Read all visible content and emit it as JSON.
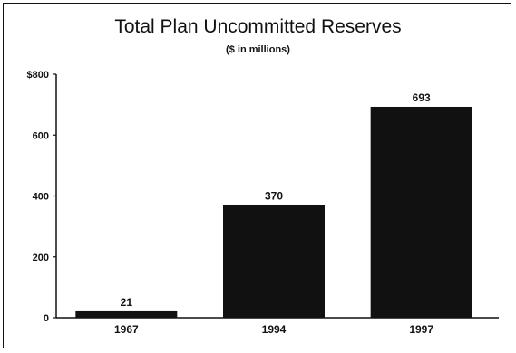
{
  "chart_data": {
    "type": "bar",
    "title": "Total Plan Uncommitted Reserves",
    "subtitle": "($ in millions)",
    "categories": [
      "1967",
      "1994",
      "1997"
    ],
    "values": [
      21,
      370,
      693
    ],
    "data_labels": [
      "21",
      "370",
      "693"
    ],
    "ylim": [
      0,
      800
    ],
    "yticks": [
      0,
      200,
      400,
      600,
      800
    ],
    "ytick_labels": [
      "0",
      "200",
      "400",
      "600",
      "$800"
    ],
    "xlabel": "",
    "ylabel": "",
    "grid": false,
    "legend": "none",
    "bar_color": "#111111"
  }
}
